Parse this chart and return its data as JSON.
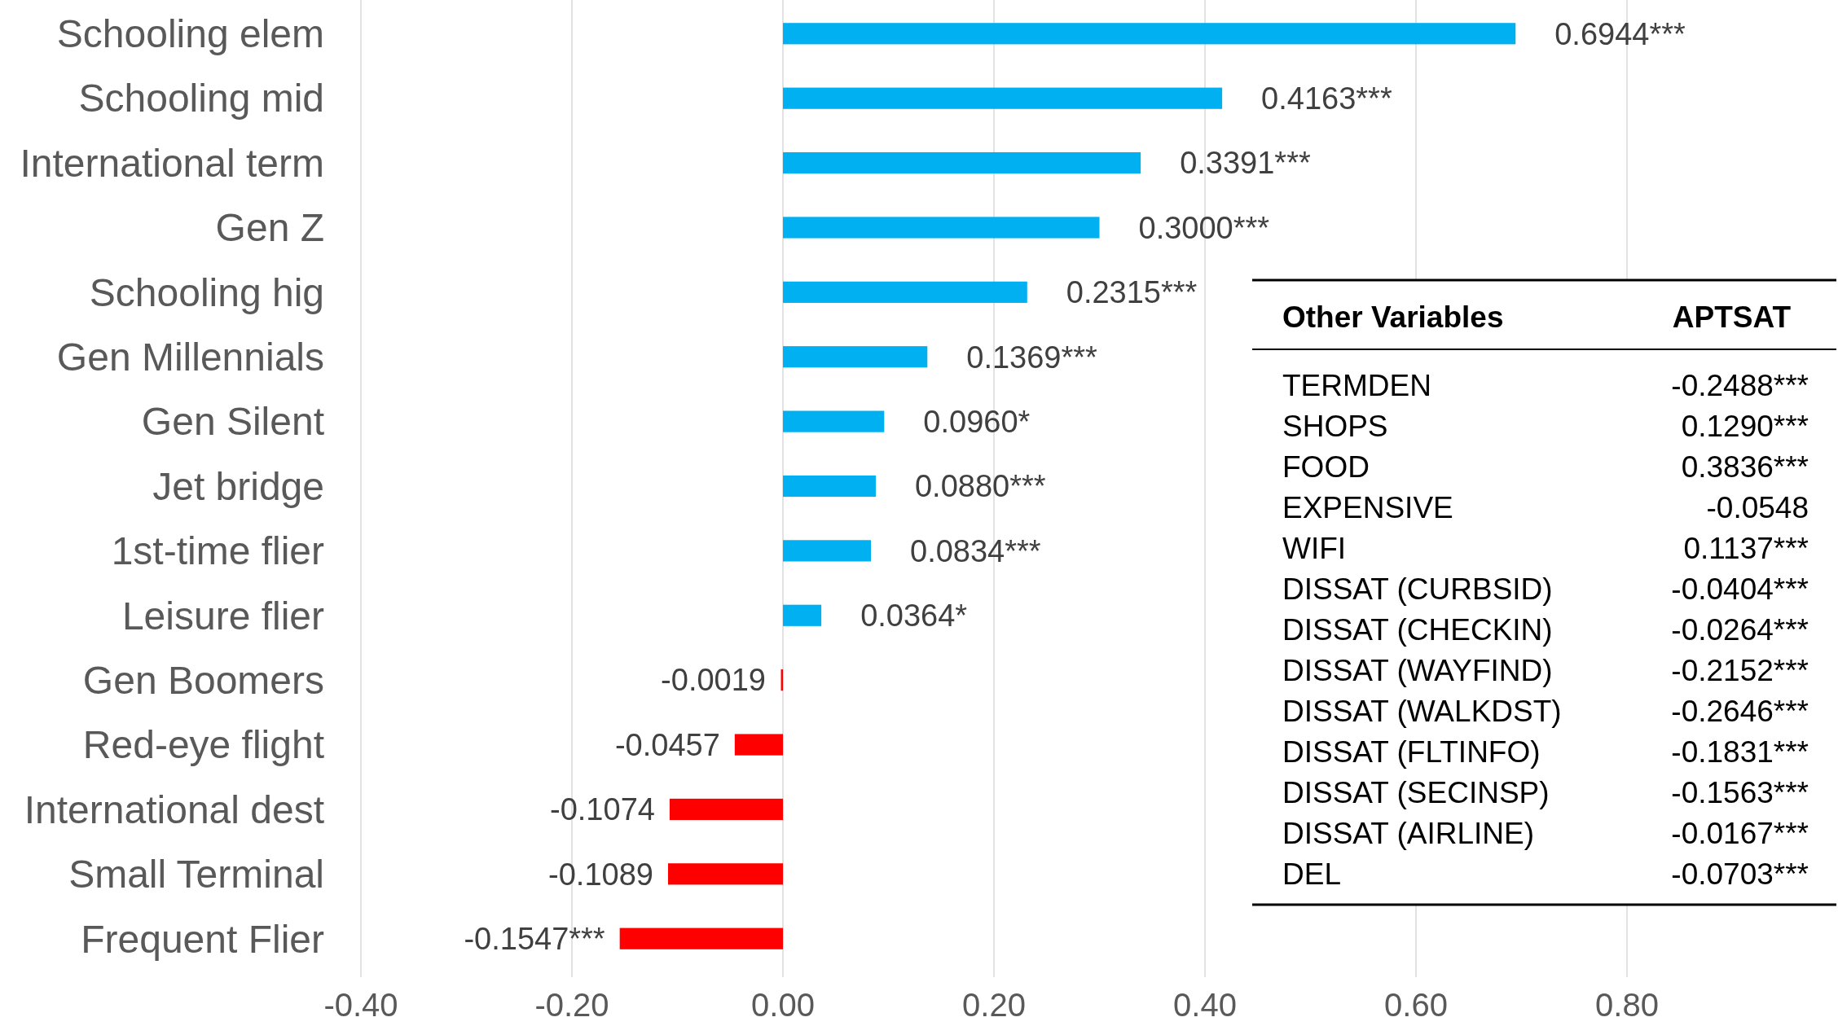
{
  "chart_data": {
    "type": "bar",
    "orientation": "horizontal",
    "categories": [
      "Schooling elem",
      "Schooling mid",
      "International term",
      "Gen Z",
      "Schooling hig",
      "Gen Millennials",
      "Gen Silent",
      "Jet bridge",
      "1st-time flier",
      "Leisure flier",
      "Gen Boomers",
      "Red-eye flight",
      "International dest",
      "Small Terminal",
      "Frequent Flier"
    ],
    "values": [
      0.6944,
      0.4163,
      0.3391,
      0.3,
      0.2315,
      0.1369,
      0.096,
      0.088,
      0.0834,
      0.0364,
      -0.0019,
      -0.0457,
      -0.1074,
      -0.1089,
      -0.1547
    ],
    "colors": [
      "#00b0f0",
      "#00b0f0",
      "#00b0f0",
      "#00b0f0",
      "#00b0f0",
      "#00b0f0",
      "#00b0f0",
      "#00b0f0",
      "#00b0f0",
      "#00b0f0",
      "#ff0000",
      "#ff0000",
      "#ff0000",
      "#ff0000",
      "#ff0000"
    ],
    "value_labels": [
      "0.6944***",
      "0.4163***",
      "0.3391***",
      "0.3000***",
      "0.2315***",
      "0.1369***",
      "0.0960*",
      "0.0880***",
      "0.0834***",
      "0.0364*",
      "-0.0019",
      "-0.0457",
      "-0.1074",
      "-0.1089",
      "-0.1547***"
    ],
    "xlim": [
      -0.4,
      1.0
    ],
    "xticks": [
      {
        "value": -0.4,
        "label": "-0.40"
      },
      {
        "value": -0.2,
        "label": "-0.20"
      },
      {
        "value": 0,
        "label": "0.00"
      },
      {
        "value": 0.2,
        "label": "0.20"
      },
      {
        "value": 0.4,
        "label": "0.40"
      },
      {
        "value": 0.6,
        "label": "0.60"
      },
      {
        "value": 0.8,
        "label": "0.80"
      }
    ],
    "grid": "x",
    "annotations": [
      "Other Variables",
      "APTSAT",
      "TERMDEN",
      "-0.2488***",
      "SHOPS",
      "0.1290***",
      "FOOD",
      "0.3836***",
      "EXPENSIVE",
      "-0.0548",
      "WIFI",
      "0.1137***",
      "DISSAT (CURBSID)",
      "-0.0404***",
      "DISSAT (CHECKIN)",
      "-0.0264***",
      "DISSAT (WAYFIND)",
      "-0.2152***",
      "DISSAT (WALKDST)",
      "-0.2646***",
      "DISSAT (FLTINFO)",
      "-0.1831***",
      "DISSAT (SECINSP)",
      "-0.1563***",
      "DISSAT (AIRLINE)",
      "-0.0167***",
      "DEL",
      "-0.0703***"
    ]
  }
}
